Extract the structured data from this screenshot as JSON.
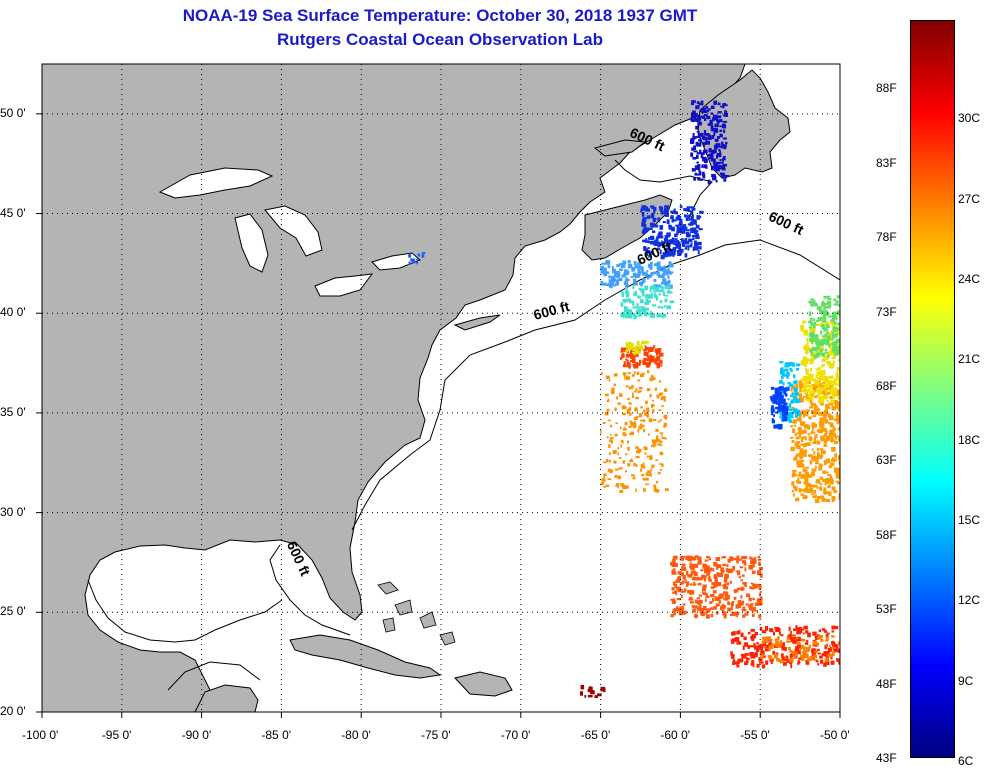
{
  "title_line1": "NOAA-19 Sea Surface Temperature:  October 30, 2018 1937 GMT",
  "title_line2": "Rutgers Coastal Ocean Observation Lab",
  "map": {
    "lon_range": [
      -100,
      -50
    ],
    "lat_range": [
      20,
      52.5
    ],
    "lat_ticks": [
      {
        "value": 50,
        "label": "50 0'"
      },
      {
        "value": 45,
        "label": "45 0'"
      },
      {
        "value": 40,
        "label": "40 0'"
      },
      {
        "value": 35,
        "label": "35 0'"
      },
      {
        "value": 30,
        "label": "30 0'"
      },
      {
        "value": 25,
        "label": "25 0'"
      },
      {
        "value": 20,
        "label": "20 0'"
      }
    ],
    "lon_ticks": [
      {
        "value": -100,
        "label": "-100 0'"
      },
      {
        "value": -95,
        "label": "-95 0'"
      },
      {
        "value": -90,
        "label": "-90 0'"
      },
      {
        "value": -85,
        "label": "-85 0'"
      },
      {
        "value": -80,
        "label": "-80 0'"
      },
      {
        "value": -75,
        "label": "-75 0'"
      },
      {
        "value": -70,
        "label": "-70 0'"
      },
      {
        "value": -65,
        "label": "-65 0'"
      },
      {
        "value": -60,
        "label": "-60 0'"
      },
      {
        "value": -55,
        "label": "-55 0'"
      },
      {
        "value": -50,
        "label": "-50 0'"
      }
    ],
    "isobath_labels": [
      {
        "label": "600 ft",
        "lon": -62.2,
        "lat": 48.5,
        "angle": 25
      },
      {
        "label": "600 ft",
        "lon": -53.5,
        "lat": 44.3,
        "angle": 25
      },
      {
        "label": "600 ft",
        "lon": -61.5,
        "lat": 42.8,
        "angle": -25
      },
      {
        "label": "600 ft",
        "lon": -68.0,
        "lat": 39.9,
        "angle": -15
      },
      {
        "label": "600 ft",
        "lon": -84.2,
        "lat": 27.6,
        "angle": 65
      }
    ],
    "colors": {
      "land": "#b4b4b4",
      "ocean": "#ffffff",
      "coast": "#000000",
      "title": "#1a1acc"
    }
  },
  "colorbar": {
    "gradient": [
      "#800000",
      "#ff0000",
      "#ff8000",
      "#ffff00",
      "#80ff80",
      "#00ffff",
      "#0080ff",
      "#0000ff",
      "#000080"
    ],
    "f_ticks": [
      {
        "value": 88,
        "label": "88F"
      },
      {
        "value": 83,
        "label": "83F"
      },
      {
        "value": 78,
        "label": "78F"
      },
      {
        "value": 73,
        "label": "73F"
      },
      {
        "value": 68,
        "label": "68F"
      },
      {
        "value": 63,
        "label": "63F"
      },
      {
        "value": 58,
        "label": "58F"
      },
      {
        "value": 53,
        "label": "53F"
      },
      {
        "value": 48,
        "label": "48F"
      },
      {
        "value": 43,
        "label": "43F"
      }
    ],
    "c_ticks": [
      {
        "value": 30,
        "label": "30C"
      },
      {
        "value": 27,
        "label": "27C"
      },
      {
        "value": 24,
        "label": "24C"
      },
      {
        "value": 21,
        "label": "21C"
      },
      {
        "value": 18,
        "label": "18C"
      },
      {
        "value": 15,
        "label": "15C"
      },
      {
        "value": 12,
        "label": "12C"
      },
      {
        "value": 9,
        "label": "9C"
      },
      {
        "value": 6,
        "label": "6C"
      }
    ]
  },
  "sst_patches": [
    {
      "name": "gulf-stream-east-warm",
      "color": "#ff9a00"
    },
    {
      "name": "gulf-stream-east-yellow",
      "color": "#f0e000"
    },
    {
      "name": "gulf-stream-east-green",
      "color": "#60e060"
    },
    {
      "name": "gulf-stream-east-cyan",
      "color": "#00c8ff"
    },
    {
      "name": "gulf-stream-east-blue",
      "color": "#0040ff"
    },
    {
      "name": "newfoundland-cold",
      "color": "#1010c8"
    },
    {
      "name": "nova-scotia-cold",
      "color": "#1030e0"
    },
    {
      "name": "scotian-slope-cool",
      "color": "#40a0ff"
    },
    {
      "name": "slope-cyan",
      "color": "#40e0d0"
    },
    {
      "name": "warm-core-ring",
      "color": "#ff4000"
    },
    {
      "name": "warm-core-ring-yellow",
      "color": "#e0e000"
    },
    {
      "name": "mid-atlantic-orange",
      "color": "#ff9000"
    },
    {
      "name": "sargasso-red-orange",
      "color": "#ff5a10"
    },
    {
      "name": "southeast-red",
      "color": "#ff2000"
    },
    {
      "name": "southeast-orange",
      "color": "#ff8000"
    },
    {
      "name": "bahamas-dark-red",
      "color": "#a00000"
    },
    {
      "name": "great-lakes-blue",
      "color": "#2060ff"
    }
  ]
}
